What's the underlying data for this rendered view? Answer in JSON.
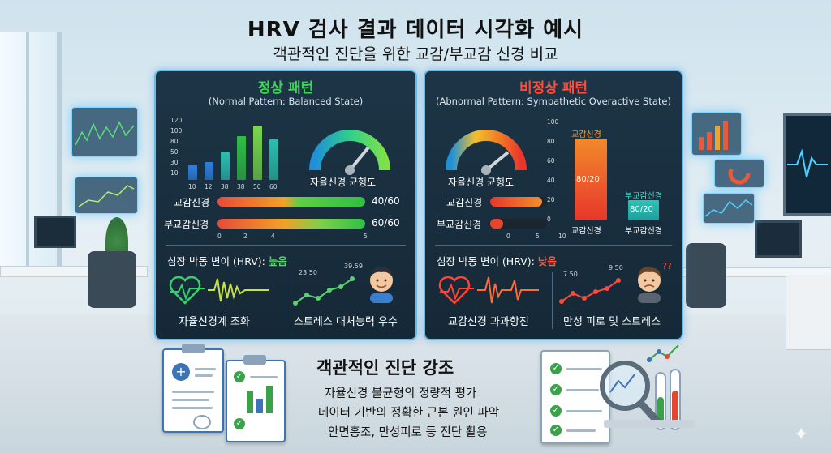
{
  "header": {
    "title": "HRV 검사 결과 데이터 시각화 예시",
    "subtitle": "객관적인 진단을 위한 교감/부교감 신경 비교"
  },
  "normal": {
    "title": "정상 패턴",
    "subtitle": "(Normal Pattern: Balanced State)",
    "chart_data": {
      "type": "bar",
      "categories": [
        "10",
        "12",
        "38",
        "38",
        "50",
        "60"
      ],
      "values": [
        30,
        36,
        57,
        90,
        112,
        84
      ],
      "yticks": [
        "120",
        "100",
        "80",
        "50",
        "30",
        "10"
      ]
    },
    "gauge_label": "자율신경 균형도",
    "rows": [
      {
        "label": "교감신경",
        "value": "40/60"
      },
      {
        "label": "부교감신경",
        "value": "60/60"
      }
    ],
    "axis_ticks": [
      "0",
      "2",
      "4",
      "5"
    ],
    "hrv_label": "심장 박동 변이 (HRV):",
    "hrv_value": "높음",
    "mini_values": [
      "23.50",
      "39.59"
    ],
    "caption_left": "자율신경계 조화",
    "caption_right": "스트레스 대처능력 우수"
  },
  "abnormal": {
    "title": "비정상 패턴",
    "subtitle": "(Abnormal Pattern: Sympathetic Overactive State)",
    "gauge_label": "자율신경 균형도",
    "rows": [
      {
        "label": "교감신경"
      },
      {
        "label": "부교감신경"
      }
    ],
    "axis_ticks": [
      "0",
      "5",
      "10"
    ],
    "chart_data": {
      "type": "bar",
      "categories": [
        "교감신경",
        "부교감신경"
      ],
      "values": [
        80,
        20
      ],
      "labels": [
        "80/20",
        "80/20"
      ],
      "legend": [
        "교감신경",
        "부교감신경"
      ],
      "yticks": [
        "100",
        "80",
        "60",
        "40",
        "20",
        "0"
      ]
    },
    "hrv_label": "심장 박동 변이 (HRV):",
    "hrv_value": "낮음",
    "mini_values": [
      "7.50",
      "9.50"
    ],
    "caption_left": "교감신경 과과항진",
    "caption_right": "만성 피로 및 스트레스"
  },
  "bottom": {
    "title": "객관적인 진단 강조",
    "lines": [
      "자율신경 불균형의 정량적 평가",
      "데이터 기반의 정확한 근본 원인 파악",
      "안면홍조, 만성피로 등 진단 활용"
    ]
  },
  "colors": {
    "green": "#2fbf45",
    "red": "#e8452f",
    "orange": "#f29a23",
    "teal": "#2bbfb0",
    "blue": "#2f7fe0"
  }
}
